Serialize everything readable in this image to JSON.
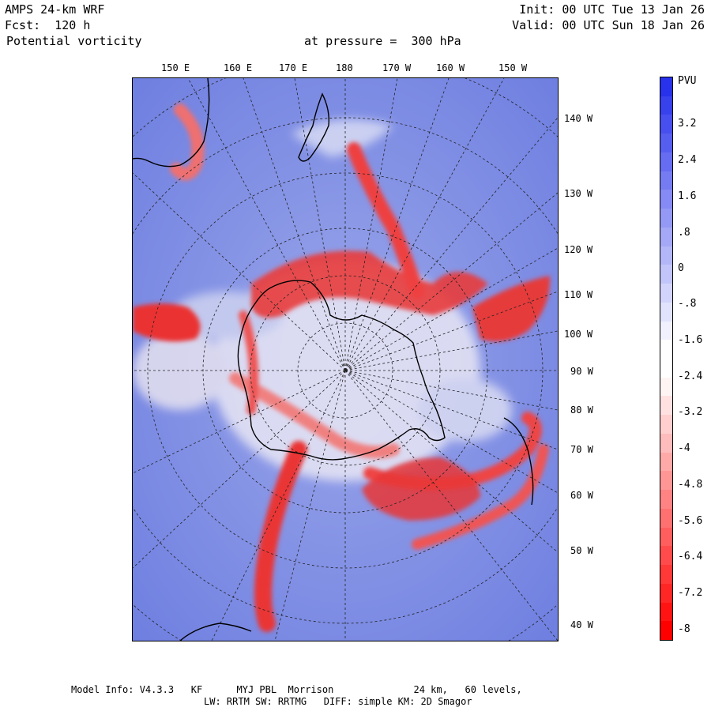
{
  "header": {
    "model_title": "AMPS 24-km WRF",
    "forecast": "Fcst:  120 h",
    "field": "Potential vorticity",
    "pressure": "at pressure =  300 hPa",
    "init": "Init: 00 UTC Tue 13 Jan 26",
    "valid": "Valid: 00 UTC Sun 18 Jan 26"
  },
  "map": {
    "top_lon_labels": [
      "150 E",
      "160 E",
      "170 E",
      "180",
      "170 W",
      "160 W",
      "150 W"
    ],
    "right_lon_labels": [
      "140 W",
      "130 W",
      "120 W",
      "110 W",
      "100 W",
      "90 W",
      "80 W",
      "70 W",
      "60 W",
      "50 W",
      "40 W"
    ],
    "colors": {
      "high_pv": "#3344ee",
      "low_pv": "#ee1111",
      "coast": "#000000",
      "grid": "#222222"
    }
  },
  "colorbar": {
    "unit": "PVU",
    "tick_labels": [
      "3.2",
      "2.4",
      "1.6",
      ".8",
      "0",
      "-.8",
      "-1.6",
      "-2.4",
      "-3.2",
      "-4",
      "-4.8",
      "-5.6",
      "-6.4",
      "-7.2",
      "-8"
    ]
  },
  "footer": {
    "line1": "Model Info: V4.3.3   KF      MYJ PBL  Morrison              24 km,   60 levels,",
    "line2": "LW: RRTM SW: RRTMG   DIFF: simple KM: 2D Smagor"
  }
}
